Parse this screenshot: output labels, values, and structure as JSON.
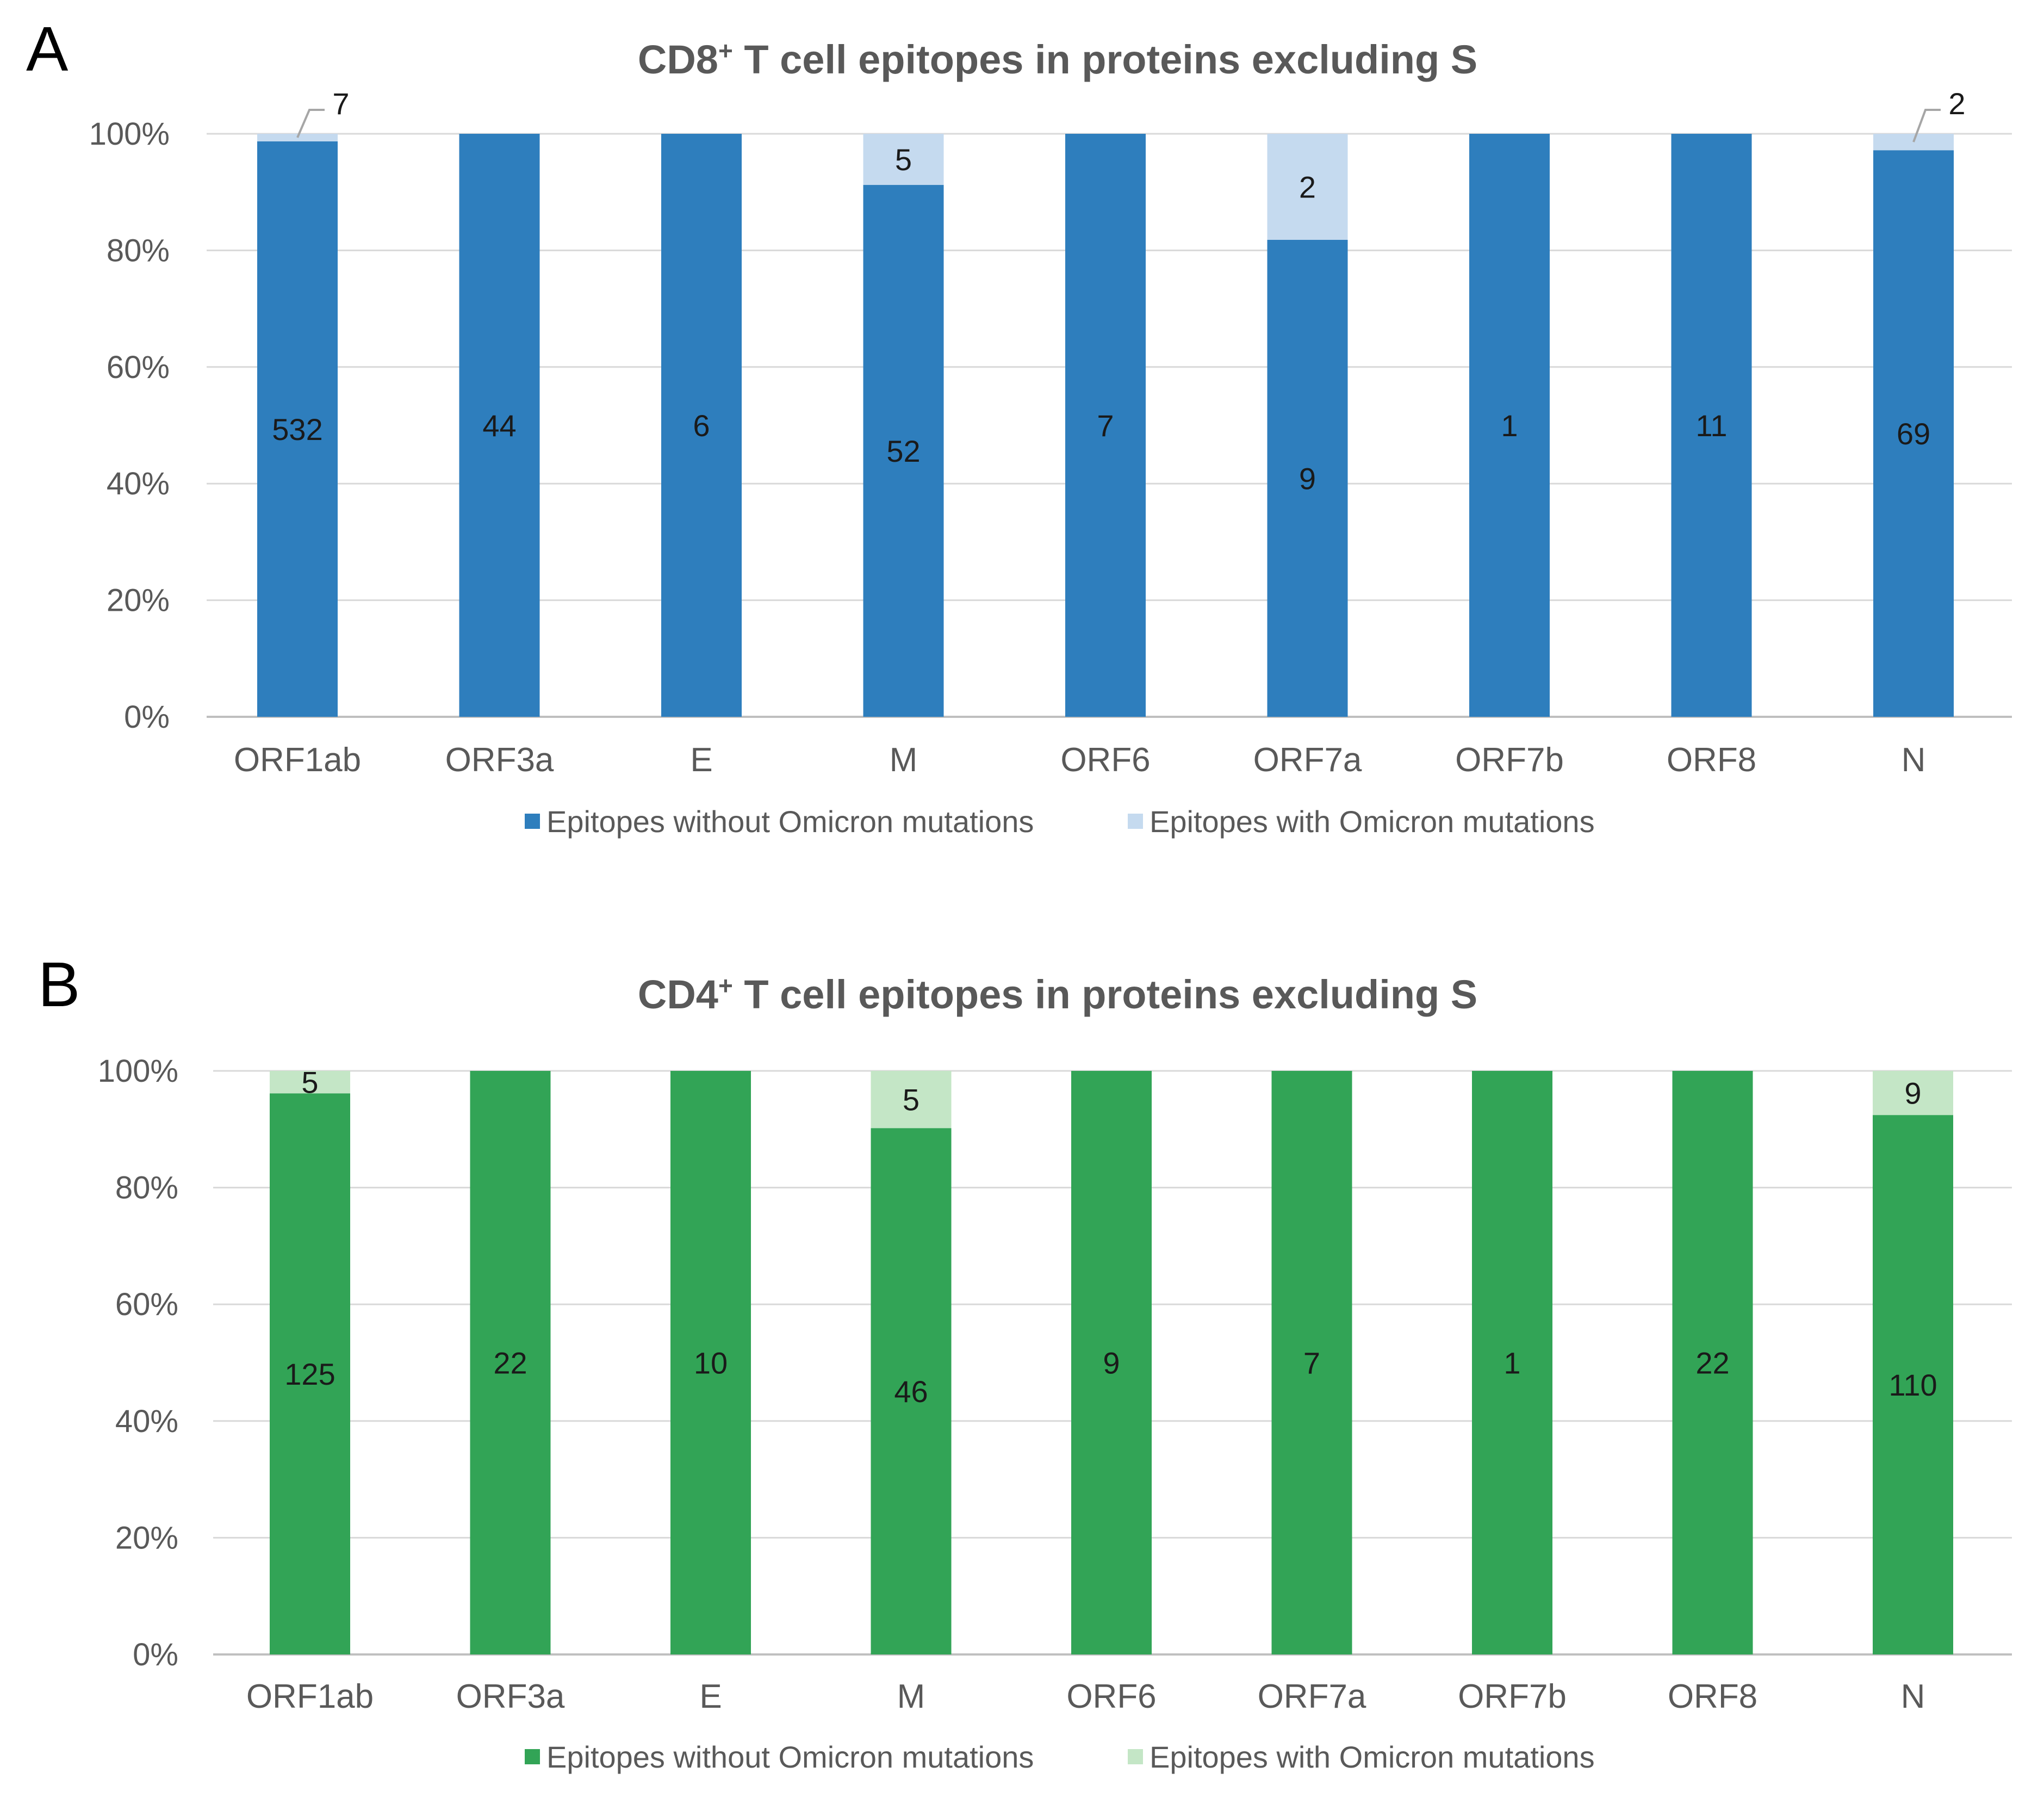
{
  "chart_data": [
    {
      "type": "bar",
      "stacked": "percent",
      "panel_label": "A",
      "title_main": "CD8",
      "title_sup": "+",
      "title_rest": " T cell epitopes in proteins excluding S",
      "categories": [
        "ORF1ab",
        "ORF3a",
        "E",
        "M",
        "ORF6",
        "ORF7a",
        "ORF7b",
        "ORF8",
        "N"
      ],
      "series": [
        {
          "name": "Epitopes without Omicron mutations",
          "color": "#2e7ebd",
          "values": [
            532,
            44,
            6,
            52,
            7,
            9,
            1,
            11,
            69
          ]
        },
        {
          "name": "Epitopes with Omicron mutations",
          "color": "#c5daef",
          "values": [
            7,
            0,
            0,
            5,
            0,
            2,
            0,
            0,
            2
          ]
        }
      ],
      "ytick_labels": [
        "0%",
        "20%",
        "40%",
        "60%",
        "80%",
        "100%"
      ],
      "ylim": [
        0,
        100
      ],
      "grid": true,
      "legend_position": "bottom"
    },
    {
      "type": "bar",
      "stacked": "percent",
      "panel_label": "B",
      "title_main": "CD4",
      "title_sup": "+",
      "title_rest": " T cell epitopes in proteins excluding S",
      "categories": [
        "ORF1ab",
        "ORF3a",
        "E",
        "M",
        "ORF6",
        "ORF7a",
        "ORF7b",
        "ORF8",
        "N"
      ],
      "series": [
        {
          "name": "Epitopes without Omicron mutations",
          "color": "#32a456",
          "values": [
            125,
            22,
            10,
            46,
            9,
            7,
            1,
            22,
            110
          ]
        },
        {
          "name": "Epitopes with Omicron mutations",
          "color": "#c4e6c6",
          "values": [
            5,
            0,
            0,
            5,
            0,
            0,
            0,
            0,
            9
          ]
        }
      ],
      "ytick_labels": [
        "0%",
        "20%",
        "40%",
        "60%",
        "80%",
        "100%"
      ],
      "ylim": [
        0,
        100
      ],
      "grid": true,
      "legend_position": "bottom"
    }
  ]
}
